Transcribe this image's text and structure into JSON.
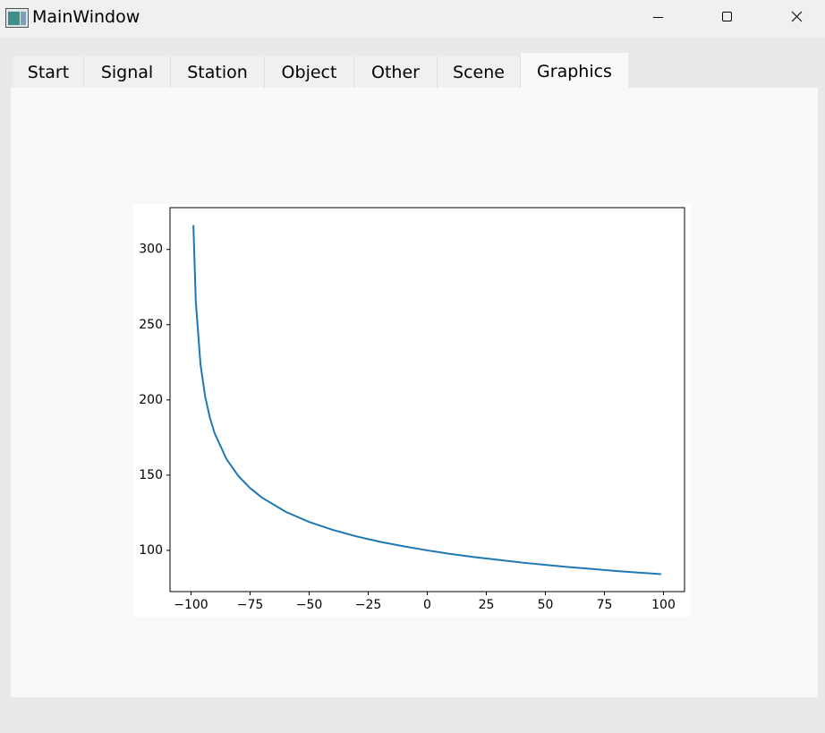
{
  "window": {
    "title": "MainWindow"
  },
  "tabs": [
    {
      "label": "Start"
    },
    {
      "label": "Signal"
    },
    {
      "label": "Station"
    },
    {
      "label": "Object"
    },
    {
      "label": "Other"
    },
    {
      "label": "Scene"
    },
    {
      "label": "Graphics",
      "selected": true
    }
  ],
  "chart_data": {
    "type": "line",
    "x": [
      -99,
      -98,
      -96,
      -94,
      -92,
      -90,
      -85,
      -80,
      -75,
      -70,
      -60,
      -50,
      -40,
      -30,
      -20,
      -10,
      0,
      10,
      20,
      30,
      40,
      50,
      60,
      70,
      80,
      90,
      99
    ],
    "values": [
      316.2,
      265.9,
      223.6,
      202.1,
      188.0,
      177.8,
      160.7,
      149.5,
      141.4,
      135.1,
      125.7,
      118.9,
      113.6,
      109.3,
      105.7,
      102.7,
      100,
      97.6,
      95.5,
      93.7,
      91.9,
      90.4,
      88.9,
      87.6,
      86.3,
      85.2,
      84.2
    ],
    "color": "#1f77b4",
    "xlim": [
      -108.9,
      108.9
    ],
    "ylim": [
      72.6,
      327.8
    ],
    "xticks": [
      {
        "value": -100,
        "label": "−100"
      },
      {
        "value": -75,
        "label": "−75"
      },
      {
        "value": -50,
        "label": "−50"
      },
      {
        "value": -25,
        "label": "−25"
      },
      0,
      25,
      50,
      75,
      100
    ],
    "yticks": [
      100,
      150,
      200,
      250,
      300
    ]
  }
}
